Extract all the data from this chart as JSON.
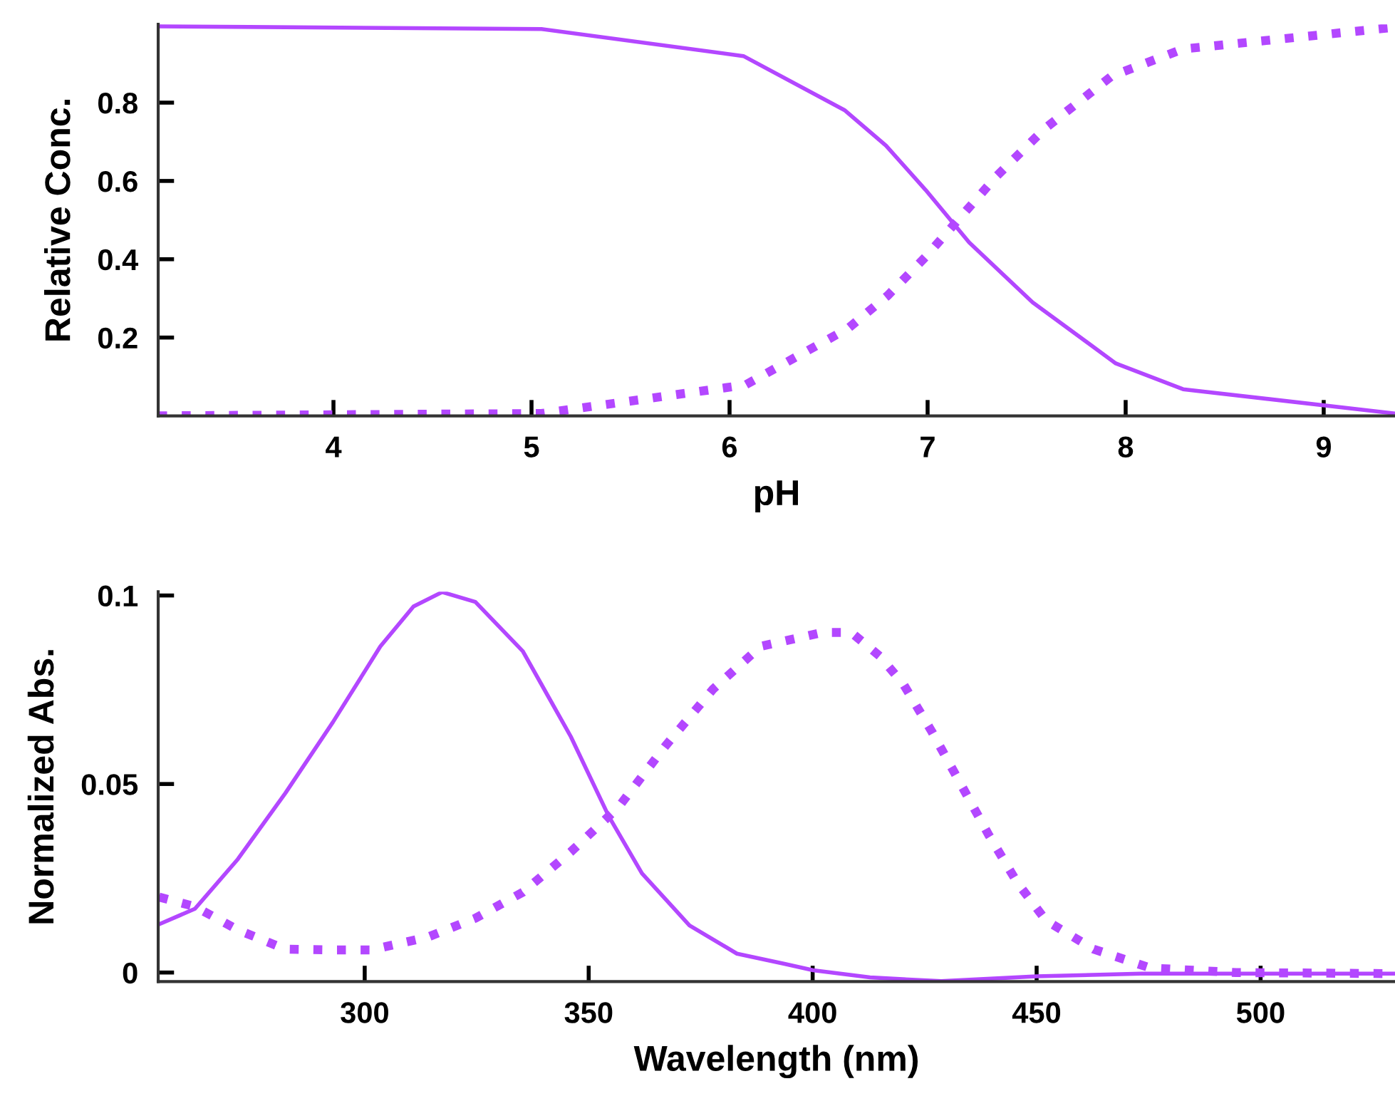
{
  "chart_data": [
    {
      "type": "line",
      "xlabel": "pH",
      "ylabel": "Relative Conc.",
      "xlim": [
        3.115,
        9.36
      ],
      "ylim": [
        0,
        1.0
      ],
      "xticks": [
        4,
        5,
        6,
        7,
        8,
        9
      ],
      "yticks": [
        0.2,
        0.4,
        0.6,
        0.8
      ],
      "grid": false,
      "legend": false,
      "series": [
        {
          "color": "#b347ff",
          "line_style": "solid",
          "x": [
            3.115,
            5.05,
            6.07,
            6.58,
            6.79,
            6.99,
            7.21,
            7.53,
            7.95,
            8.29,
            9.36
          ],
          "values": [
            0.995,
            0.988,
            0.919,
            0.781,
            0.69,
            0.577,
            0.443,
            0.29,
            0.134,
            0.068,
            0.006
          ]
        },
        {
          "color": "#b347ff",
          "line_style": "dotted",
          "x": [
            3.115,
            5.05,
            6.08,
            6.6,
            6.8,
            6.99,
            7.16,
            7.35,
            7.59,
            7.93,
            8.29,
            9.35
          ],
          "values": [
            0.0,
            0.006,
            0.079,
            0.224,
            0.308,
            0.406,
            0.504,
            0.613,
            0.733,
            0.868,
            0.937,
            0.992
          ]
        }
      ]
    },
    {
      "type": "line",
      "xlabel": "Wavelength (nm)",
      "ylabel": "Normalized Abs.",
      "xlim": [
        253.9,
        530
      ],
      "ylim": [
        -0.0024,
        0.101
      ],
      "xticks": [
        300,
        350,
        400,
        450,
        500
      ],
      "yticks": [
        0,
        0.05,
        0.1
      ],
      "grid": false,
      "legend": false,
      "series": [
        {
          "color": "#b347ff",
          "line_style": "solid",
          "x": [
            254.1,
            262.1,
            271.7,
            282.3,
            292.9,
            303.5,
            310.9,
            317.3,
            324.7,
            335.3,
            346,
            354.5,
            361.9,
            372.5,
            383.1,
            393.7,
            400.1,
            412.8,
            428.7,
            450,
            473.3,
            530
          ],
          "values": [
            0.0128,
            0.0169,
            0.0301,
            0.0476,
            0.0664,
            0.0865,
            0.0971,
            0.1009,
            0.0983,
            0.0852,
            0.0626,
            0.0414,
            0.0263,
            0.0125,
            0.005,
            0.0023,
            0.0006,
            -0.0013,
            -0.0023,
            -0.001,
            -0.0003,
            -0.0003
          ]
        },
        {
          "color": "#b347ff",
          "line_style": "dotted",
          "x": [
            254.1,
            262.1,
            271.7,
            282.3,
            292.9,
            301.4,
            314.1,
            324.7,
            335.3,
            346,
            356.6,
            367.2,
            377.8,
            388.4,
            402.2,
            408.6,
            415,
            420.3,
            426.6,
            433,
            439.4,
            445.7,
            452.1,
            462.7,
            475.4,
            494.5,
            530
          ],
          "values": [
            0.02,
            0.0175,
            0.0113,
            0.0062,
            0.006,
            0.006,
            0.0094,
            0.0144,
            0.0213,
            0.032,
            0.0438,
            0.0602,
            0.0752,
            0.0865,
            0.0902,
            0.0902,
            0.0839,
            0.0764,
            0.0639,
            0.0501,
            0.0363,
            0.0238,
            0.0138,
            0.0062,
            0.0012,
            0.0,
            -0.0003
          ]
        }
      ]
    }
  ]
}
